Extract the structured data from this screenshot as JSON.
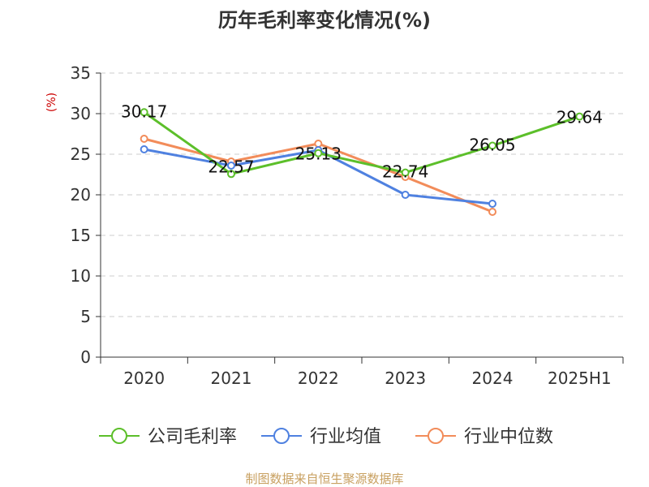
{
  "colors": {
    "title": "#333333",
    "axis": "#333333",
    "grid": "#cccccc",
    "ylabel": "#cc0000",
    "source": "#c8a060"
  },
  "source_text": "制图数据来自恒生聚源数据库",
  "chart_data": {
    "type": "line",
    "title": "历年毛利率变化情况(%)",
    "ylabel": "(%)",
    "xlabel": "",
    "categories": [
      "2020",
      "2021",
      "2022",
      "2023",
      "2024",
      "2025H1"
    ],
    "ylim": [
      0,
      35
    ],
    "yticks": [
      0,
      5,
      10,
      15,
      20,
      25,
      30,
      35
    ],
    "grid": true,
    "legend_position": "bottom",
    "series": [
      {
        "name": "公司毛利率",
        "color": "#5cbf2a",
        "values": [
          30.17,
          22.57,
          25.13,
          22.74,
          26.05,
          29.64
        ],
        "labels": [
          "30.17",
          "22.57",
          "25.13",
          "22.74",
          "26.05",
          "29.64"
        ]
      },
      {
        "name": "行业均值",
        "color": "#4f81e0",
        "values": [
          25.6,
          23.6,
          25.5,
          20.0,
          18.9,
          null
        ]
      },
      {
        "name": "行业中位数",
        "color": "#f28c5a",
        "values": [
          26.9,
          24.1,
          26.3,
          22.2,
          17.9,
          null
        ]
      }
    ]
  }
}
